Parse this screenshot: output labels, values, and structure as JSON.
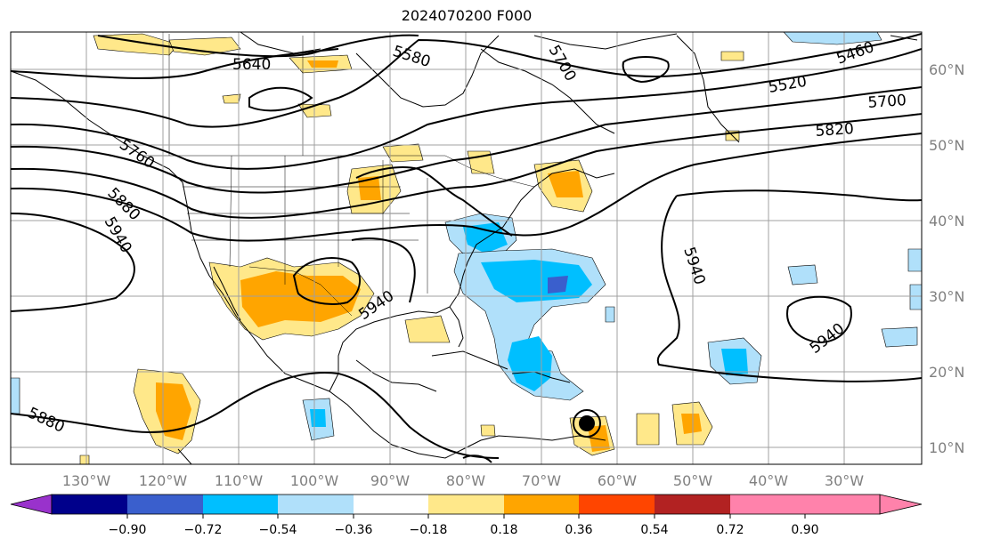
{
  "title": "2024070200 F000",
  "longitude_labels": [
    "130°W",
    "120°W",
    "110°W",
    "100°W",
    "90°W",
    "80°W",
    "70°W",
    "60°W",
    "50°W",
    "40°W",
    "30°W"
  ],
  "latitude_labels": [
    "60°N",
    "50°N",
    "40°N",
    "30°N",
    "20°N",
    "10°N"
  ],
  "colorbar": {
    "ticks": [
      "−0.90",
      "−0.72",
      "−0.54",
      "−0.36",
      "−0.18",
      "0.18",
      "0.36",
      "0.54",
      "0.72",
      "0.90"
    ],
    "colors": [
      "#9932cc",
      "#00008b",
      "#3a5fcd",
      "#00bfff",
      "#b0e0fa",
      "#ffffff",
      "#ffe88a",
      "#ffa500",
      "#ff4500",
      "#b22222",
      "#ff82ab"
    ]
  },
  "contour_labels": [
    "5640",
    "5580",
    "5700",
    "5460",
    "5520",
    "5700",
    "5820",
    "5760",
    "5880",
    "5940",
    "5940",
    "5940",
    "5940",
    "5880"
  ],
  "colors": {
    "grid": "#a0a0a0",
    "contour": "#000000",
    "coast": "#000000"
  }
}
